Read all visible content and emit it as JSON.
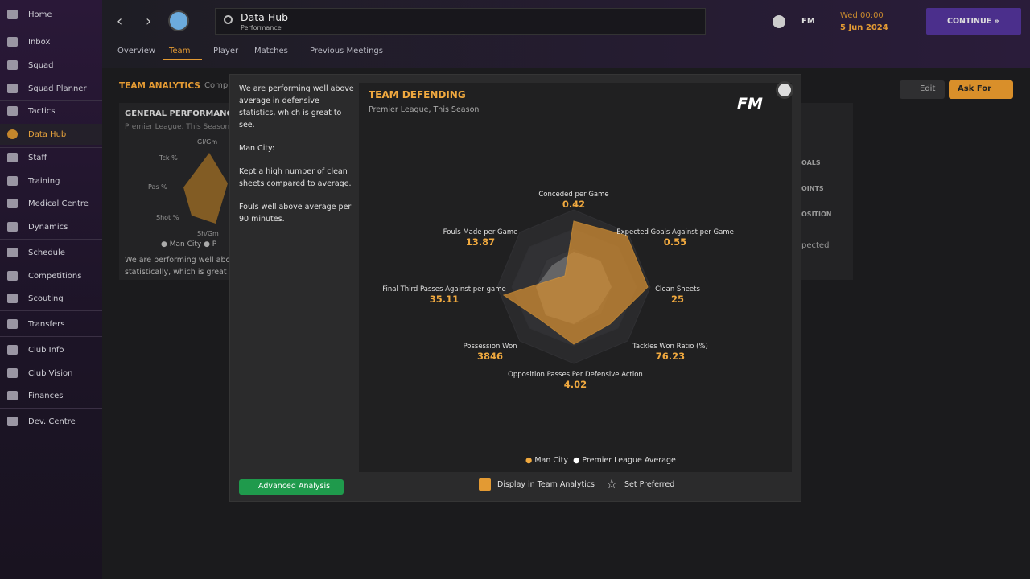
{
  "sidebar": {
    "items": [
      "Home",
      "Inbox",
      "Squad",
      "Squad Planner",
      "Tactics",
      "Data Hub",
      "Staff",
      "Training",
      "Medical Centre",
      "Dynamics",
      "Schedule",
      "Competitions",
      "Scouting",
      "Transfers",
      "Club Info",
      "Club Vision",
      "Finances",
      "Dev. Centre"
    ]
  },
  "header": {
    "title": "Data Hub",
    "subtitle": "Performance",
    "time": "Wed 00:00",
    "date": "5 Jun 2024",
    "continue": "CONTINUE",
    "fm": "FM"
  },
  "tabs": [
    "Overview",
    "Team",
    "Player",
    "Matches",
    "Previous Meetings"
  ],
  "background": {
    "section": "TEAM ANALYTICS",
    "section_sub": "Compil",
    "edit": "Edit",
    "ask_for": "Ask For",
    "card": {
      "title": "GENERAL PERFORMANC",
      "subtitle": "Premier League, This Season",
      "axes": [
        "Gl/Gm",
        "Tck %",
        "Pas %",
        "Shot %",
        "Sh/Gm"
      ],
      "legend": [
        "Man City",
        "P"
      ],
      "text": [
        "We are performing well abov",
        "statistically, which is great t"
      ]
    },
    "right_card": [
      "OALS",
      "OINTS",
      "OSITION",
      "pected"
    ]
  },
  "modal": {
    "paragraphs": [
      "We are performing well above average in defensive statistics, which is great to see.",
      "Man City:",
      "Kept a high number of clean sheets compared to average.",
      "Fouls well above average per 90 minutes."
    ],
    "advanced": "Advanced Analysis",
    "chart": {
      "title": "TEAM DEFENDING",
      "subtitle": "Premier League, This Season",
      "logo": "FM",
      "axes": [
        {
          "label": "Conceded per Game",
          "value": 0.42
        },
        {
          "label": "Expected Goals Against per Game",
          "value": 0.55
        },
        {
          "label": "Clean Sheets",
          "value": 25
        },
        {
          "label": "Tackles Won Ratio (%)",
          "value": 76.23
        },
        {
          "label": "Opposition Passes Per Defensive Action",
          "value": 4.02
        },
        {
          "label": "Possession Won",
          "value": 3846
        },
        {
          "label": "Final Third Passes Against per game",
          "value": 35.11
        },
        {
          "label": "Fouls Made per Game",
          "value": 13.87
        }
      ],
      "legend": [
        "Man City",
        "Premier League Average"
      ]
    },
    "display": "Display in Team Analytics",
    "preferred": "Set Preferred"
  }
}
